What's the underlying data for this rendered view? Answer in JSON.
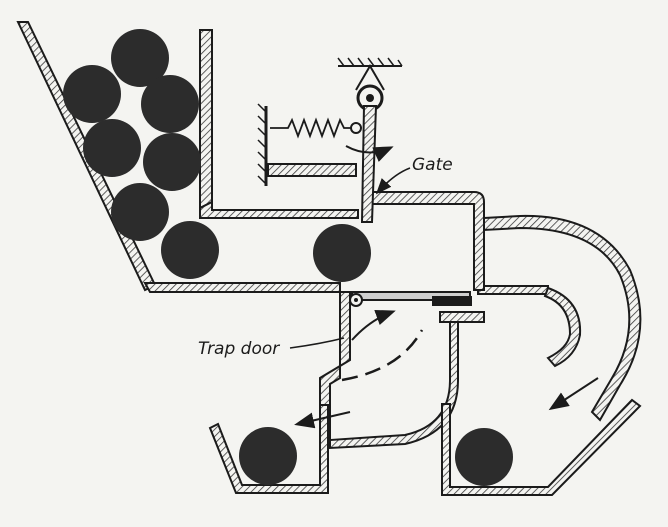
{
  "labels": {
    "gate": "Gate",
    "trap_door": "Trap door"
  },
  "colors": {
    "ink": "#1b1b1b",
    "ball": "#2c2c2c",
    "paper": "#f4f4f1",
    "hatch": "#3a3a3a"
  }
}
